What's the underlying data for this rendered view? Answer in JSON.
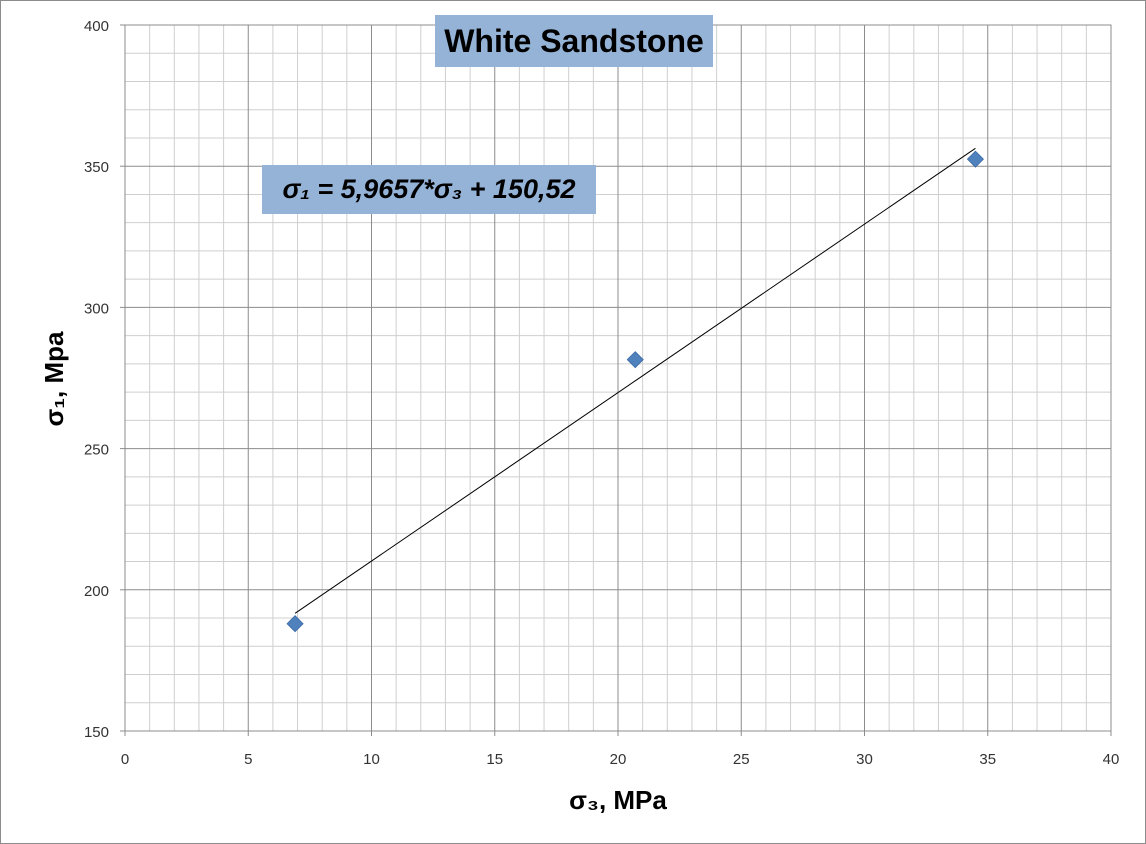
{
  "chart_data": {
    "type": "scatter",
    "title": "White Sandstone",
    "xlabel": "σ₃, MPa",
    "ylabel": "σ₁, Mpa",
    "xlim": [
      0,
      40
    ],
    "ylim": [
      150,
      400
    ],
    "x_ticks": [
      "0",
      "5",
      "10",
      "15",
      "20",
      "25",
      "30",
      "35",
      "40"
    ],
    "y_ticks": [
      "150",
      "200",
      "250",
      "300",
      "350",
      "400"
    ],
    "grid": true,
    "minor_grid": true,
    "legend": "none",
    "series": [
      {
        "x": [
          6.9,
          20.7,
          34.5
        ],
        "y": [
          188,
          281.5,
          352.5
        ],
        "marker": "diamond",
        "color": "#4f81bd"
      }
    ],
    "trendline": {
      "type": "linear",
      "slope": 5.9657,
      "intercept": 150.52,
      "x_range": [
        6.9,
        34.5
      ],
      "color": "#000000",
      "equation_label": "σ₁ = 5,9657*σ₃ + 150,52"
    },
    "colors": {
      "label_box": "#95b3d7",
      "marker": "#4f81bd"
    }
  }
}
